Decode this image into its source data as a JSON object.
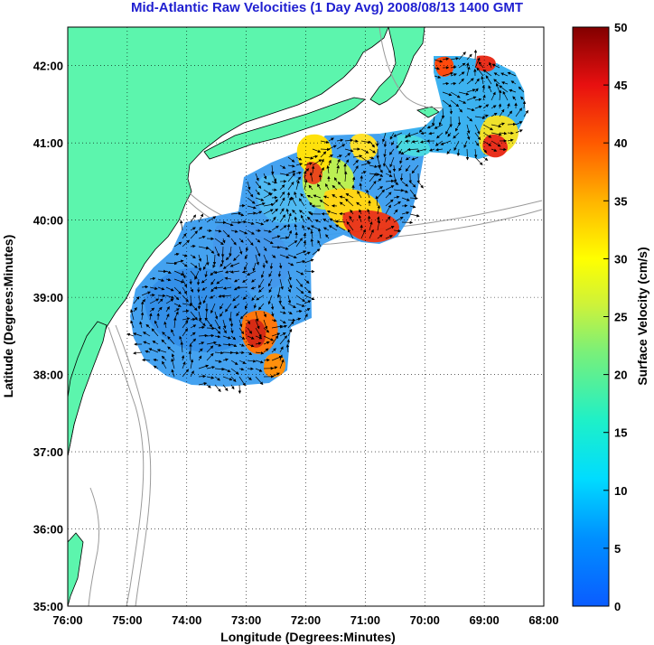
{
  "title": "Mid-Atlantic Raw Velocities (1 Day Avg) 2008/08/13 1400 GMT",
  "map": {
    "xlabel": "Longitude (Degrees:Minutes)",
    "ylabel": "Latitude (Degrees:Minutes)",
    "lon_ticks": [
      "76:00",
      "75:00",
      "74:00",
      "73:00",
      "72:00",
      "71:00",
      "70:00",
      "69:00",
      "68:00"
    ],
    "lat_ticks": [
      "42:00",
      "41:00",
      "40:00",
      "39:00",
      "38:00",
      "37:00",
      "36:00",
      "35:00"
    ],
    "lon_range": [
      -76,
      -68
    ],
    "lat_range": [
      35,
      42.5
    ],
    "land_color": "#5cf5ad",
    "grid": "dotted"
  },
  "colorbar": {
    "label": "Surface Velocity (cm/s)",
    "ticks": [
      "50",
      "45",
      "40",
      "35",
      "30",
      "25",
      "20",
      "15",
      "10",
      "5",
      "0"
    ],
    "range": [
      0,
      50
    ],
    "colormap": "jet"
  }
}
